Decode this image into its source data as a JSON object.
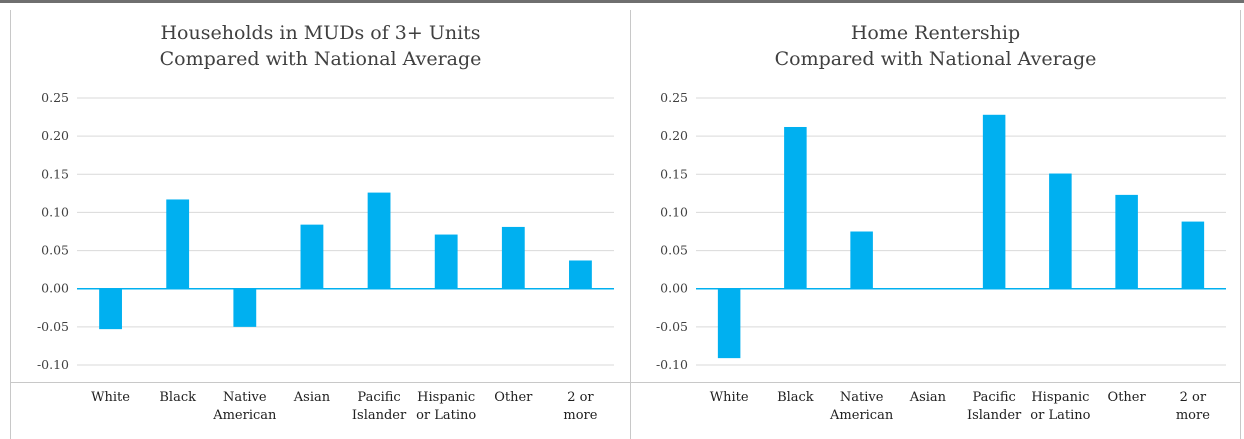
{
  "colors": {
    "bar": "#00B0F0",
    "grid": "#d9d9d9",
    "zero_line": "#00B0F0",
    "text": "#404040"
  },
  "chart_data": [
    {
      "type": "bar",
      "title": "Households in MUDs of 3+ Units",
      "subtitle": "Compared with National Average",
      "xlabel": "",
      "ylabel": "",
      "ylim": [
        -0.1,
        0.25
      ],
      "yticks": [
        "0.25",
        "0.20",
        "0.15",
        "0.10",
        "0.05",
        "0.00",
        "-0.05",
        "-0.10"
      ],
      "grid": true,
      "categories": [
        [
          "White"
        ],
        [
          "Black"
        ],
        [
          "Native",
          "American"
        ],
        [
          "Asian"
        ],
        [
          "Pacific",
          "Islander"
        ],
        [
          "Hispanic",
          "or Latino"
        ],
        [
          "Other"
        ],
        [
          "2 or",
          "more"
        ]
      ],
      "values": [
        -0.053,
        0.117,
        -0.05,
        0.084,
        0.126,
        0.071,
        0.081,
        0.037
      ]
    },
    {
      "type": "bar",
      "title": "Home Rentership",
      "subtitle": "Compared with National Average",
      "xlabel": "",
      "ylabel": "",
      "ylim": [
        -0.1,
        0.25
      ],
      "yticks": [
        "0.25",
        "0.20",
        "0.15",
        "0.10",
        "0.05",
        "0.00",
        "-0.05",
        "-0.10"
      ],
      "grid": true,
      "categories": [
        [
          "White"
        ],
        [
          "Black"
        ],
        [
          "Native",
          "American"
        ],
        [
          "Asian"
        ],
        [
          "Pacific",
          "Islander"
        ],
        [
          "Hispanic",
          "or Latino"
        ],
        [
          "Other"
        ],
        [
          "2 or",
          "more"
        ]
      ],
      "values": [
        -0.091,
        0.212,
        0.075,
        0.0,
        0.228,
        0.151,
        0.123,
        0.088
      ]
    }
  ]
}
